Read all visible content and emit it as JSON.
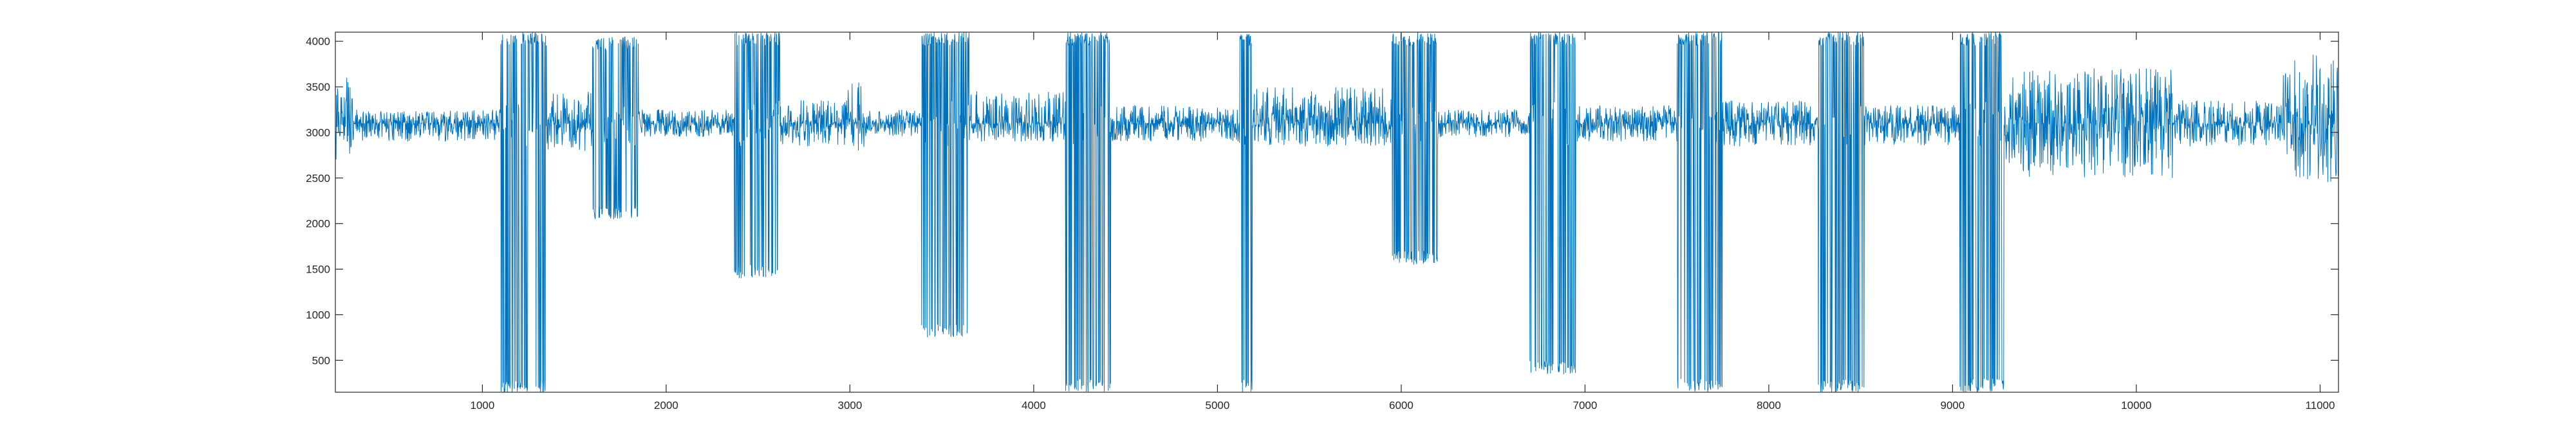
{
  "chart_data": {
    "type": "line",
    "title": "",
    "xlabel": "",
    "ylabel": "",
    "xlim": [
      200,
      11100
    ],
    "ylim": [
      150,
      4100
    ],
    "xticks": [
      1000,
      2000,
      3000,
      4000,
      5000,
      6000,
      7000,
      8000,
      9000,
      10000,
      11000
    ],
    "xtick_labels": [
      "1000",
      "2000",
      "3000",
      "4000",
      "5000",
      "6000",
      "7000",
      "8000",
      "9000",
      "10000",
      "11000"
    ],
    "yticks": [
      500,
      1000,
      1500,
      2000,
      2500,
      3000,
      3500,
      4000
    ],
    "ytick_labels": [
      "500",
      "1000",
      "1500",
      "2000",
      "2500",
      "3000",
      "3500",
      "4000"
    ],
    "grid": false,
    "legend": "none",
    "series": [
      {
        "line_color": "#0072BD",
        "baseline": 3100,
        "segments": [
          {
            "x_start": 200,
            "x_end": 300,
            "min": 2620,
            "max": 3600
          },
          {
            "x_start": 300,
            "x_end": 1100,
            "min": 2900,
            "max": 3250
          },
          {
            "x_start": 1100,
            "x_end": 1350,
            "min": 150,
            "max": 4100
          },
          {
            "x_start": 1350,
            "x_end": 1600,
            "min": 2800,
            "max": 3450
          },
          {
            "x_start": 1600,
            "x_end": 1850,
            "min": 2050,
            "max": 4050
          },
          {
            "x_start": 1850,
            "x_end": 2370,
            "min": 2950,
            "max": 3250
          },
          {
            "x_start": 2370,
            "x_end": 2620,
            "min": 1400,
            "max": 4100
          },
          {
            "x_start": 2620,
            "x_end": 2970,
            "min": 2850,
            "max": 3350
          },
          {
            "x_start": 2970,
            "x_end": 3080,
            "min": 2800,
            "max": 3550
          },
          {
            "x_start": 3080,
            "x_end": 3390,
            "min": 2950,
            "max": 3250
          },
          {
            "x_start": 3390,
            "x_end": 3650,
            "min": 750,
            "max": 4100
          },
          {
            "x_start": 3650,
            "x_end": 4170,
            "min": 2900,
            "max": 3450
          },
          {
            "x_start": 4170,
            "x_end": 4420,
            "min": 150,
            "max": 4100
          },
          {
            "x_start": 4420,
            "x_end": 5120,
            "min": 2900,
            "max": 3300
          },
          {
            "x_start": 5120,
            "x_end": 5190,
            "min": 150,
            "max": 4100
          },
          {
            "x_start": 5190,
            "x_end": 5950,
            "min": 2850,
            "max": 3500
          },
          {
            "x_start": 5950,
            "x_end": 6200,
            "min": 1550,
            "max": 4100
          },
          {
            "x_start": 6200,
            "x_end": 6700,
            "min": 2950,
            "max": 3250
          },
          {
            "x_start": 6700,
            "x_end": 6950,
            "min": 350,
            "max": 4100
          },
          {
            "x_start": 6950,
            "x_end": 7500,
            "min": 2900,
            "max": 3300
          },
          {
            "x_start": 7500,
            "x_end": 7750,
            "min": 150,
            "max": 4100
          },
          {
            "x_start": 7750,
            "x_end": 8270,
            "min": 2850,
            "max": 3350
          },
          {
            "x_start": 8270,
            "x_end": 8520,
            "min": 150,
            "max": 4100
          },
          {
            "x_start": 8520,
            "x_end": 9040,
            "min": 2850,
            "max": 3300
          },
          {
            "x_start": 9040,
            "x_end": 9280,
            "min": 150,
            "max": 4100
          },
          {
            "x_start": 9280,
            "x_end": 10200,
            "min": 2500,
            "max": 3700
          },
          {
            "x_start": 10200,
            "x_end": 10800,
            "min": 2850,
            "max": 3350
          },
          {
            "x_start": 10800,
            "x_end": 11100,
            "min": 2450,
            "max": 3850
          }
        ]
      }
    ]
  }
}
